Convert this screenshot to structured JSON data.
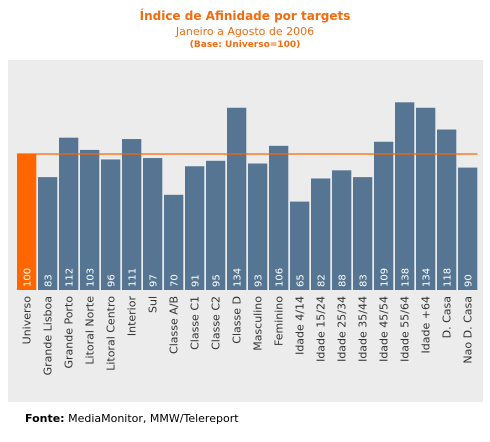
{
  "chart_data": {
    "type": "bar",
    "title": "Índice de Afinidade por targets",
    "subtitle": "Janeiro a Agosto de 2006",
    "note": "(Base: Universo=100)",
    "categories": [
      "Universo",
      "Grande Lisboa",
      "Grande Porto",
      "Litoral Norte",
      "Litoral Centro",
      "Interior",
      "Sul",
      "Classe A/B",
      "Classe C1",
      "Classe C2",
      "Classe D",
      "Masculino",
      "Feminino",
      "Idade 4/14",
      "Idade 15/24",
      "Idade 25/34",
      "Idade 35/44",
      "Idade 45/54",
      "Idade 55/64",
      "Idade +64",
      "D. Casa",
      "Nao D. Casa"
    ],
    "values": [
      100,
      83,
      112,
      103,
      96,
      111,
      97,
      70,
      91,
      95,
      134,
      93,
      106,
      65,
      82,
      88,
      83,
      109,
      138,
      134,
      118,
      90
    ],
    "ylim": [
      0,
      150
    ],
    "reference_line": 100,
    "highlight_index": 0,
    "colors": {
      "bar": "#557593",
      "highlight": "#ff6600",
      "reference_line": "#ff6600",
      "value_label": "#ffffff",
      "category_label": "#333333",
      "title": "#f26b0f"
    }
  },
  "source": {
    "label": "Fonte:",
    "text": "MediaMonitor, MMW/Telereport"
  }
}
